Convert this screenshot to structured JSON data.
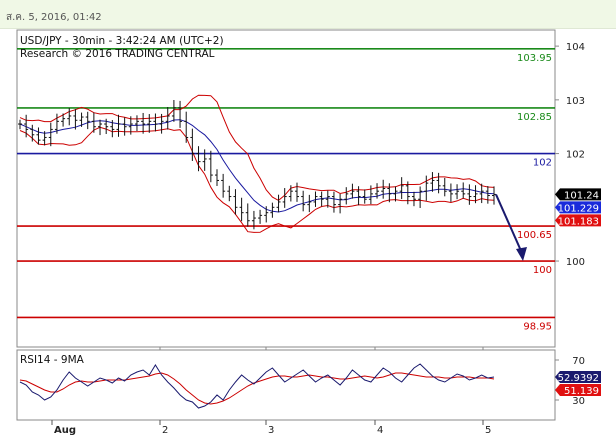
{
  "header": {
    "timestamp": "ส.ค. 5, 2016, 01:42"
  },
  "chart_data": {
    "type": "line",
    "title": "USD/JPY - 30min - 3:42:24 AM (UTC+2)",
    "subtitle": "Research © 2016 TRADING CENTRAL",
    "price_ylim": [
      98.4,
      104.3
    ],
    "price_ticks": [
      "104",
      "103",
      "102",
      "101",
      "100"
    ],
    "x_ticks": [
      "Aug",
      "2",
      "3",
      "4",
      "5"
    ],
    "levels": [
      {
        "label": "103.95",
        "value": 103.95,
        "color": "#1a8a1a"
      },
      {
        "label": "102.85",
        "value": 102.85,
        "color": "#1a8a1a"
      },
      {
        "label": "102",
        "value": 102.0,
        "color": "#1a1aa0"
      },
      {
        "label": "100.65",
        "value": 100.65,
        "color": "#cc0000"
      },
      {
        "label": "100",
        "value": 100.0,
        "color": "#cc0000"
      },
      {
        "label": "98.95",
        "value": 98.95,
        "color": "#cc0000"
      }
    ],
    "price_labels": [
      {
        "label": "101.24",
        "value": 101.24,
        "bg": "#000000"
      },
      {
        "label": "101.229",
        "value": 101.229,
        "bg": "#1a2adb"
      },
      {
        "label": "101.183",
        "value": 101.183,
        "bg": "#e01010"
      }
    ],
    "close_series": [
      102.55,
      102.45,
      102.35,
      102.25,
      102.3,
      102.45,
      102.6,
      102.65,
      102.7,
      102.62,
      102.68,
      102.6,
      102.5,
      102.55,
      102.5,
      102.45,
      102.55,
      102.5,
      102.55,
      102.6,
      102.55,
      102.6,
      102.55,
      102.6,
      102.7,
      102.85,
      102.6,
      102.3,
      102.0,
      101.85,
      101.9,
      101.6,
      101.5,
      101.3,
      101.2,
      101.0,
      100.9,
      100.75,
      100.8,
      100.85,
      100.9,
      101.0,
      101.1,
      101.2,
      101.3,
      101.2,
      101.05,
      101.1,
      101.2,
      101.15,
      101.2,
      101.05,
      101.15,
      101.25,
      101.3,
      101.2,
      101.15,
      101.25,
      101.3,
      101.35,
      101.25,
      101.3,
      101.4,
      101.2,
      101.15,
      101.3,
      101.45,
      101.5,
      101.4,
      101.3,
      101.25,
      101.3,
      101.25,
      101.2,
      101.25,
      101.3,
      101.22,
      101.24
    ],
    "projection": {
      "from": 101.24,
      "to": 100.0
    },
    "rsi": {
      "title": "RSI14 - 9MA",
      "ylim": [
        10,
        80
      ],
      "ticks": [
        "70",
        "30"
      ],
      "value_label": "52.9392",
      "ma_label": "51.139",
      "rsi_values": [
        48,
        45,
        38,
        35,
        30,
        33,
        40,
        50,
        58,
        52,
        48,
        44,
        48,
        52,
        50,
        47,
        52,
        49,
        55,
        58,
        60,
        55,
        65,
        55,
        48,
        42,
        35,
        30,
        28,
        22,
        24,
        28,
        35,
        30,
        40,
        48,
        55,
        50,
        46,
        52,
        58,
        62,
        55,
        48,
        52,
        56,
        60,
        54,
        48,
        52,
        55,
        50,
        45,
        52,
        60,
        55,
        50,
        48,
        55,
        62,
        58,
        52,
        48,
        55,
        62,
        66,
        60,
        54,
        50,
        48,
        52,
        56,
        54,
        50,
        52,
        55,
        52,
        53
      ],
      "ma_values": [
        50,
        49,
        46,
        43,
        40,
        38,
        38,
        41,
        45,
        48,
        49,
        48,
        48,
        49,
        50,
        50,
        50,
        50,
        51,
        52,
        53,
        54,
        56,
        57,
        55,
        51,
        46,
        40,
        35,
        30,
        27,
        26,
        27,
        29,
        32,
        36,
        40,
        44,
        47,
        49,
        51,
        53,
        54,
        54,
        53,
        53,
        54,
        55,
        54,
        53,
        53,
        52,
        51,
        51,
        52,
        53,
        54,
        53,
        52,
        53,
        55,
        57,
        57,
        56,
        55,
        54,
        53,
        53,
        53,
        52,
        52,
        53,
        53,
        53,
        52,
        52,
        52,
        51
      ]
    }
  }
}
